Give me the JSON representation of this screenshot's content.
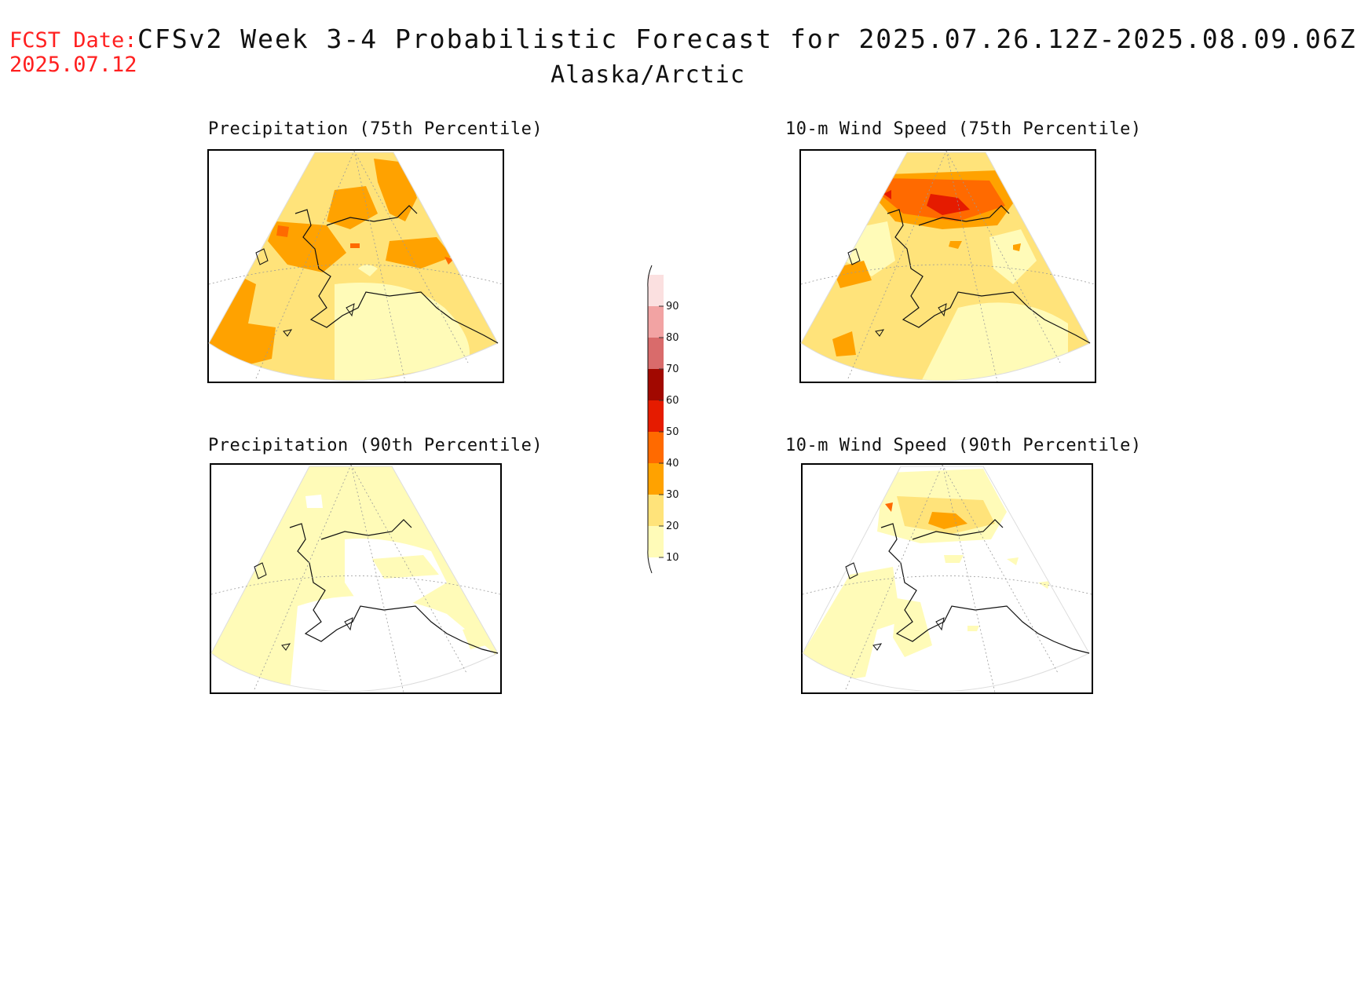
{
  "header": {
    "fcst_label": "FCST Date:",
    "fcst_date": "2025.07.12",
    "title": "CFSv2 Week 3-4 Probabilistic Forecast for 2025.07.26.12Z-2025.08.09.06Z",
    "region": "Alaska/Arctic"
  },
  "panels": [
    {
      "title": "Precipitation (75th Percentile)"
    },
    {
      "title": "10-m Wind Speed (75th Percentile)"
    },
    {
      "title": "Precipitation (90th Percentile)"
    },
    {
      "title": "10-m Wind Speed (90th Percentile)"
    }
  ],
  "colorbar": {
    "levels": [
      "10",
      "20",
      "30",
      "40",
      "50",
      "60",
      "70",
      "80",
      "90"
    ],
    "colors": [
      "#fffbb8",
      "#ffe37a",
      "#ffa200",
      "#ff6a00",
      "#e51b00",
      "#a10800",
      "#d96b6b",
      "#f2a3a3",
      "#fbe0e0"
    ]
  }
}
